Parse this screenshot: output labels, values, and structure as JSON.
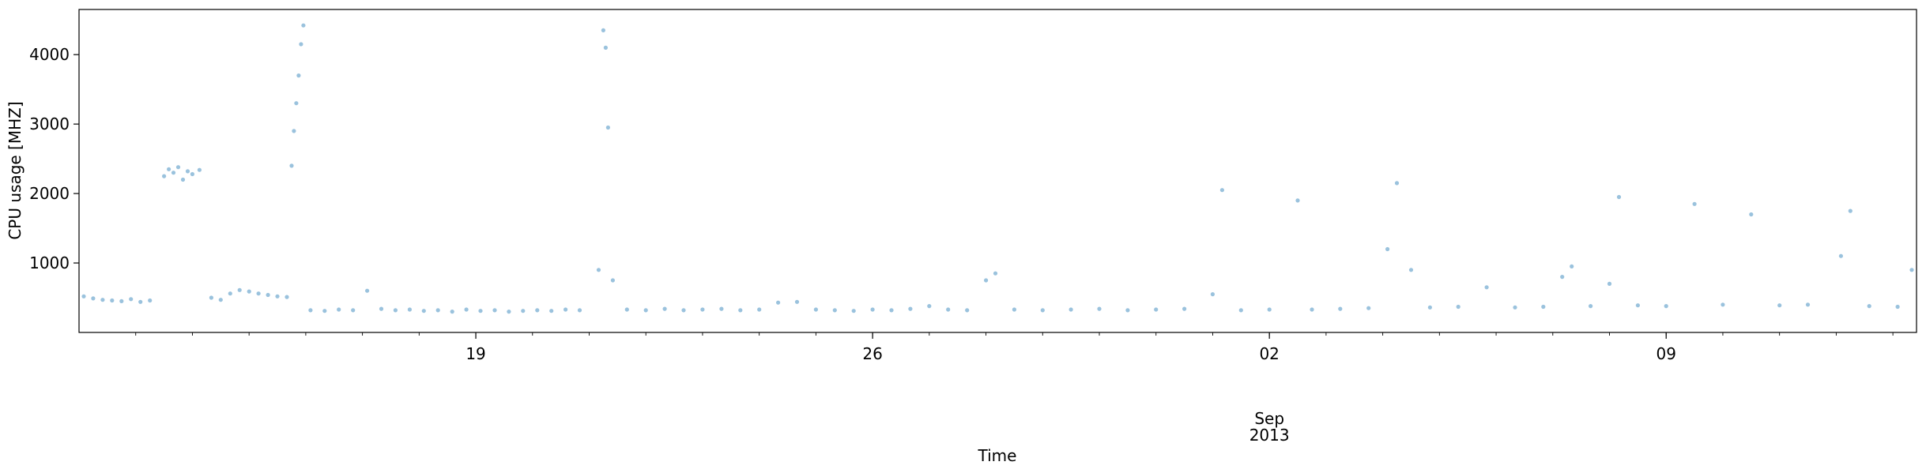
{
  "chart_data": {
    "type": "scatter",
    "title": "",
    "xlabel": "Time",
    "ylabel": "CPU usage [MHZ]",
    "x_range": [
      "2013-08-12T00:00",
      "2013-09-13T10:00"
    ],
    "ylim": [
      0,
      4650
    ],
    "grid": false,
    "legend": "none",
    "marker_color": "#1f77b4",
    "marker_alpha": 0.45,
    "y_ticks": [
      {
        "value": 1000,
        "label": "1000"
      },
      {
        "value": 2000,
        "label": "2000"
      },
      {
        "value": 3000,
        "label": "3000"
      },
      {
        "value": 4000,
        "label": "4000"
      }
    ],
    "x_major_ticks": [
      {
        "date": "2013-08-19",
        "label": "19"
      },
      {
        "date": "2013-08-26",
        "label": "26"
      },
      {
        "date": "2013-09-02",
        "label": "02"
      },
      {
        "date": "2013-09-09",
        "label": "09"
      }
    ],
    "x_month_label": {
      "date": "2013-09-02",
      "label": "Sep"
    },
    "x_year_label": {
      "date": "2013-09-02",
      "label": "2013"
    },
    "series": [
      {
        "points": [
          [
            "2013-08-12T02:00",
            520
          ],
          [
            "2013-08-12T06:00",
            490
          ],
          [
            "2013-08-12T10:00",
            470
          ],
          [
            "2013-08-12T14:00",
            460
          ],
          [
            "2013-08-12T18:00",
            450
          ],
          [
            "2013-08-12T22:00",
            480
          ],
          [
            "2013-08-13T02:00",
            440
          ],
          [
            "2013-08-13T06:00",
            460
          ],
          [
            "2013-08-13T12:00",
            2250
          ],
          [
            "2013-08-13T14:00",
            2350
          ],
          [
            "2013-08-13T16:00",
            2300
          ],
          [
            "2013-08-13T18:00",
            2380
          ],
          [
            "2013-08-13T20:00",
            2200
          ],
          [
            "2013-08-13T22:00",
            2320
          ],
          [
            "2013-08-14T00:00",
            2280
          ],
          [
            "2013-08-14T03:00",
            2340
          ],
          [
            "2013-08-14T08:00",
            500
          ],
          [
            "2013-08-14T12:00",
            470
          ],
          [
            "2013-08-14T16:00",
            560
          ],
          [
            "2013-08-14T20:00",
            610
          ],
          [
            "2013-08-15T00:00",
            590
          ],
          [
            "2013-08-15T04:00",
            560
          ],
          [
            "2013-08-15T08:00",
            540
          ],
          [
            "2013-08-15T12:00",
            520
          ],
          [
            "2013-08-15T16:00",
            510
          ],
          [
            "2013-08-15T18:00",
            2400
          ],
          [
            "2013-08-15T19:00",
            2900
          ],
          [
            "2013-08-15T20:00",
            3300
          ],
          [
            "2013-08-15T21:00",
            3700
          ],
          [
            "2013-08-15T22:00",
            4150
          ],
          [
            "2013-08-15T23:00",
            4420
          ],
          [
            "2013-08-16T02:00",
            320
          ],
          [
            "2013-08-16T08:00",
            310
          ],
          [
            "2013-08-16T14:00",
            330
          ],
          [
            "2013-08-16T20:00",
            320
          ],
          [
            "2013-08-17T02:00",
            600
          ],
          [
            "2013-08-17T08:00",
            340
          ],
          [
            "2013-08-17T14:00",
            320
          ],
          [
            "2013-08-17T20:00",
            330
          ],
          [
            "2013-08-18T02:00",
            310
          ],
          [
            "2013-08-18T08:00",
            320
          ],
          [
            "2013-08-18T14:00",
            300
          ],
          [
            "2013-08-18T20:00",
            330
          ],
          [
            "2013-08-19T02:00",
            310
          ],
          [
            "2013-08-19T08:00",
            320
          ],
          [
            "2013-08-19T14:00",
            300
          ],
          [
            "2013-08-19T20:00",
            310
          ],
          [
            "2013-08-20T02:00",
            320
          ],
          [
            "2013-08-20T08:00",
            310
          ],
          [
            "2013-08-20T14:00",
            330
          ],
          [
            "2013-08-20T20:00",
            320
          ],
          [
            "2013-08-21T04:00",
            900
          ],
          [
            "2013-08-21T06:00",
            4350
          ],
          [
            "2013-08-21T07:00",
            4100
          ],
          [
            "2013-08-21T08:00",
            2950
          ],
          [
            "2013-08-21T10:00",
            750
          ],
          [
            "2013-08-21T16:00",
            330
          ],
          [
            "2013-08-22T00:00",
            320
          ],
          [
            "2013-08-22T08:00",
            340
          ],
          [
            "2013-08-22T16:00",
            320
          ],
          [
            "2013-08-23T00:00",
            330
          ],
          [
            "2013-08-23T08:00",
            340
          ],
          [
            "2013-08-23T16:00",
            320
          ],
          [
            "2013-08-24T00:00",
            330
          ],
          [
            "2013-08-24T08:00",
            430
          ],
          [
            "2013-08-24T16:00",
            440
          ],
          [
            "2013-08-25T00:00",
            330
          ],
          [
            "2013-08-25T08:00",
            320
          ],
          [
            "2013-08-25T16:00",
            310
          ],
          [
            "2013-08-26T00:00",
            330
          ],
          [
            "2013-08-26T08:00",
            320
          ],
          [
            "2013-08-26T16:00",
            340
          ],
          [
            "2013-08-27T00:00",
            380
          ],
          [
            "2013-08-27T08:00",
            330
          ],
          [
            "2013-08-27T16:00",
            320
          ],
          [
            "2013-08-28T00:00",
            750
          ],
          [
            "2013-08-28T04:00",
            850
          ],
          [
            "2013-08-28T12:00",
            330
          ],
          [
            "2013-08-29T00:00",
            320
          ],
          [
            "2013-08-29T12:00",
            330
          ],
          [
            "2013-08-30T00:00",
            340
          ],
          [
            "2013-08-30T12:00",
            320
          ],
          [
            "2013-08-31T00:00",
            330
          ],
          [
            "2013-08-31T12:00",
            340
          ],
          [
            "2013-09-01T00:00",
            550
          ],
          [
            "2013-09-01T04:00",
            2050
          ],
          [
            "2013-09-01T12:00",
            320
          ],
          [
            "2013-09-02T00:00",
            330
          ],
          [
            "2013-09-02T12:00",
            1900
          ],
          [
            "2013-09-02T18:00",
            330
          ],
          [
            "2013-09-03T06:00",
            340
          ],
          [
            "2013-09-03T18:00",
            350
          ],
          [
            "2013-09-04T02:00",
            1200
          ],
          [
            "2013-09-04T06:00",
            2150
          ],
          [
            "2013-09-04T12:00",
            900
          ],
          [
            "2013-09-04T20:00",
            360
          ],
          [
            "2013-09-05T08:00",
            370
          ],
          [
            "2013-09-05T20:00",
            650
          ],
          [
            "2013-09-06T08:00",
            360
          ],
          [
            "2013-09-06T20:00",
            370
          ],
          [
            "2013-09-07T04:00",
            800
          ],
          [
            "2013-09-07T08:00",
            950
          ],
          [
            "2013-09-07T16:00",
            380
          ],
          [
            "2013-09-08T00:00",
            700
          ],
          [
            "2013-09-08T04:00",
            1950
          ],
          [
            "2013-09-08T12:00",
            390
          ],
          [
            "2013-09-09T00:00",
            380
          ],
          [
            "2013-09-09T12:00",
            1850
          ],
          [
            "2013-09-10T00:00",
            400
          ],
          [
            "2013-09-10T12:00",
            1700
          ],
          [
            "2013-09-11T00:00",
            390
          ],
          [
            "2013-09-11T12:00",
            400
          ],
          [
            "2013-09-12T02:00",
            1100
          ],
          [
            "2013-09-12T06:00",
            1750
          ],
          [
            "2013-09-12T14:00",
            380
          ],
          [
            "2013-09-13T02:00",
            370
          ],
          [
            "2013-09-13T08:00",
            900
          ]
        ]
      }
    ]
  }
}
